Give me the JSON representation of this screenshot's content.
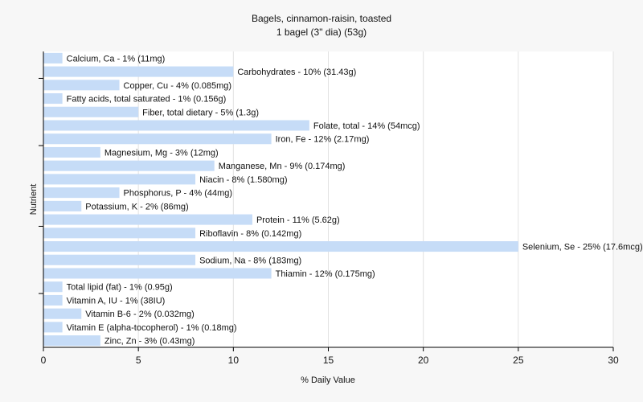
{
  "chart_data": {
    "type": "bar",
    "orientation": "horizontal",
    "title": "Bagels, cinnamon-raisin, toasted",
    "subtitle": "1 bagel (3\" dia) (53g)",
    "xlabel": "% Daily Value",
    "ylabel": "Nutrient",
    "xlim": [
      0,
      30
    ],
    "xticks": [
      0,
      5,
      10,
      15,
      20,
      25,
      30
    ],
    "grid": "vertical",
    "bar_color": "#c6dcf7",
    "categories": [
      "Calcium, Ca",
      "Carbohydrates",
      "Copper, Cu",
      "Fatty acids, total saturated",
      "Fiber, total dietary",
      "Folate, total",
      "Iron, Fe",
      "Magnesium, Mg",
      "Manganese, Mn",
      "Niacin",
      "Phosphorus, P",
      "Potassium, K",
      "Protein",
      "Riboflavin",
      "Selenium, Se",
      "Sodium, Na",
      "Thiamin",
      "Total lipid (fat)",
      "Vitamin A, IU",
      "Vitamin B-6",
      "Vitamin E (alpha-tocopherol)",
      "Zinc, Zn"
    ],
    "values": [
      1,
      10,
      4,
      1,
      5,
      14,
      12,
      3,
      9,
      8,
      4,
      2,
      11,
      8,
      25,
      8,
      12,
      1,
      1,
      2,
      1,
      3
    ],
    "labels": [
      "Calcium, Ca - 1% (11mg)",
      "Carbohydrates - 10% (31.43g)",
      "Copper, Cu - 4% (0.085mg)",
      "Fatty acids, total saturated - 1% (0.156g)",
      "Fiber, total dietary - 5% (1.3g)",
      "Folate, total - 14% (54mcg)",
      "Iron, Fe - 12% (2.17mg)",
      "Magnesium, Mg - 3% (12mg)",
      "Manganese, Mn - 9% (0.174mg)",
      "Niacin - 8% (1.580mg)",
      "Phosphorus, P - 4% (44mg)",
      "Potassium, K - 2% (86mg)",
      "Protein - 11% (5.62g)",
      "Riboflavin - 8% (0.142mg)",
      "Selenium, Se - 25% (17.6mcg)",
      "Sodium, Na - 8% (183mg)",
      "Thiamin - 12% (0.175mg)",
      "Total lipid (fat) - 1% (0.95g)",
      "Vitamin A, IU - 1% (38IU)",
      "Vitamin B-6 - 2% (0.032mg)",
      "Vitamin E (alpha-tocopherol) - 1% (0.18mg)",
      "Zinc, Zn - 3% (0.43mg)"
    ]
  }
}
